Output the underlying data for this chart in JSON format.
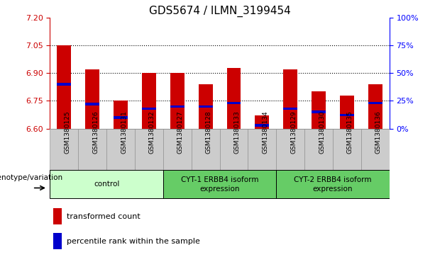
{
  "title": "GDS5674 / ILMN_3199454",
  "samples": [
    "GSM1380125",
    "GSM1380126",
    "GSM1380131",
    "GSM1380132",
    "GSM1380127",
    "GSM1380128",
    "GSM1380133",
    "GSM1380134",
    "GSM1380129",
    "GSM1380130",
    "GSM1380135",
    "GSM1380136"
  ],
  "transformed_count": [
    7.05,
    6.92,
    6.75,
    6.9,
    6.9,
    6.84,
    6.93,
    6.67,
    6.92,
    6.8,
    6.78,
    6.84
  ],
  "percentile_rank": [
    40,
    22,
    10,
    18,
    20,
    20,
    23,
    3,
    18,
    15,
    12,
    23
  ],
  "ymin": 6.6,
  "ymax": 7.2,
  "yticks": [
    6.6,
    6.75,
    6.9,
    7.05,
    7.2
  ],
  "right_yticks": [
    0,
    25,
    50,
    75,
    100
  ],
  "bar_color": "#cc0000",
  "percentile_color": "#0000cc",
  "groups": [
    {
      "label": "control",
      "start": 0,
      "end": 3,
      "color": "#ccffcc"
    },
    {
      "label": "CYT-1 ERBB4 isoform\nexpression",
      "start": 4,
      "end": 7,
      "color": "#66cc66"
    },
    {
      "label": "CYT-2 ERBB4 isoform\nexpression",
      "start": 8,
      "end": 11,
      "color": "#66cc66"
    }
  ],
  "xlabel_label": "genotype/variation",
  "legend_items": [
    {
      "color": "#cc0000",
      "label": "transformed count"
    },
    {
      "color": "#0000cc",
      "label": "percentile rank within the sample"
    }
  ],
  "bar_width": 0.5,
  "title_fontsize": 11,
  "sample_fontsize": 6.5,
  "group_fontsize": 7.5,
  "legend_fontsize": 8
}
